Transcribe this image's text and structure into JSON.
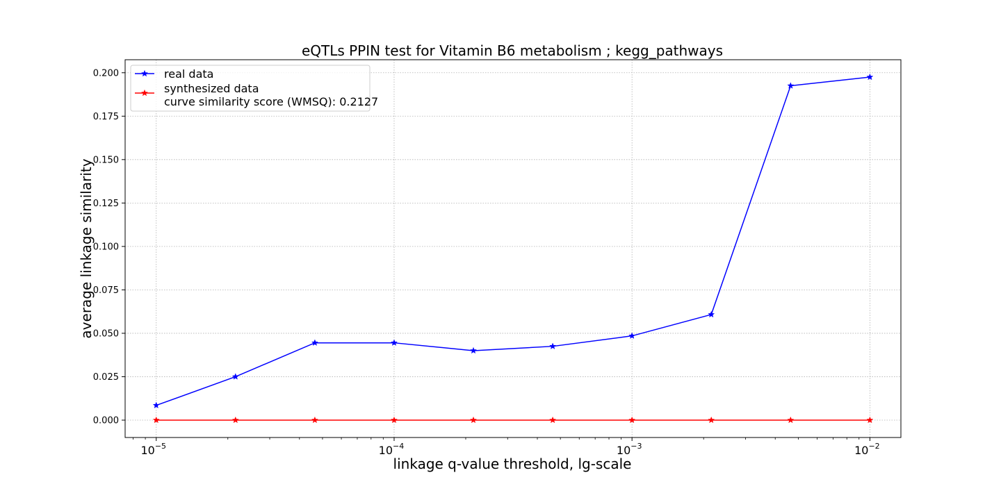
{
  "chart_data": {
    "type": "line",
    "title": "eQTLs PPIN test for Vitamin B6 metabolism ; kegg_pathways",
    "xlabel": "linkage q-value threshold, lg-scale",
    "ylabel": "average linkage similarity",
    "xscale": "log",
    "x": [
      1e-05,
      2.154e-05,
      4.642e-05,
      0.0001,
      0.0002154,
      0.0004642,
      0.001,
      0.002154,
      0.004642,
      0.01
    ],
    "xlim": [
      7.4e-06,
      0.0135
    ],
    "ylim": [
      -0.01,
      0.2075
    ],
    "xticks": [
      {
        "value": 1e-05,
        "base": "10",
        "exp": "−5"
      },
      {
        "value": 0.0001,
        "base": "10",
        "exp": "−4"
      },
      {
        "value": 0.001,
        "base": "10",
        "exp": "−3"
      },
      {
        "value": 0.01,
        "base": "10",
        "exp": "−2"
      }
    ],
    "yticks": [
      "0.000",
      "0.025",
      "0.050",
      "0.075",
      "0.100",
      "0.125",
      "0.150",
      "0.175",
      "0.200"
    ],
    "grid": true,
    "legend_position": "upper-left",
    "series": [
      {
        "name": "real data",
        "color": "#0000ff",
        "marker": "star",
        "values": [
          0.0085,
          0.025,
          0.0445,
          0.0445,
          0.04,
          0.0425,
          0.0485,
          0.0608,
          0.1925,
          0.1975
        ]
      },
      {
        "name": "synthesized data\ncurve similarity score (WMSQ): 0.2127",
        "color": "#ff0000",
        "marker": "star",
        "values": [
          0,
          0,
          0,
          0,
          0,
          0,
          0,
          0,
          0,
          0
        ]
      }
    ]
  }
}
